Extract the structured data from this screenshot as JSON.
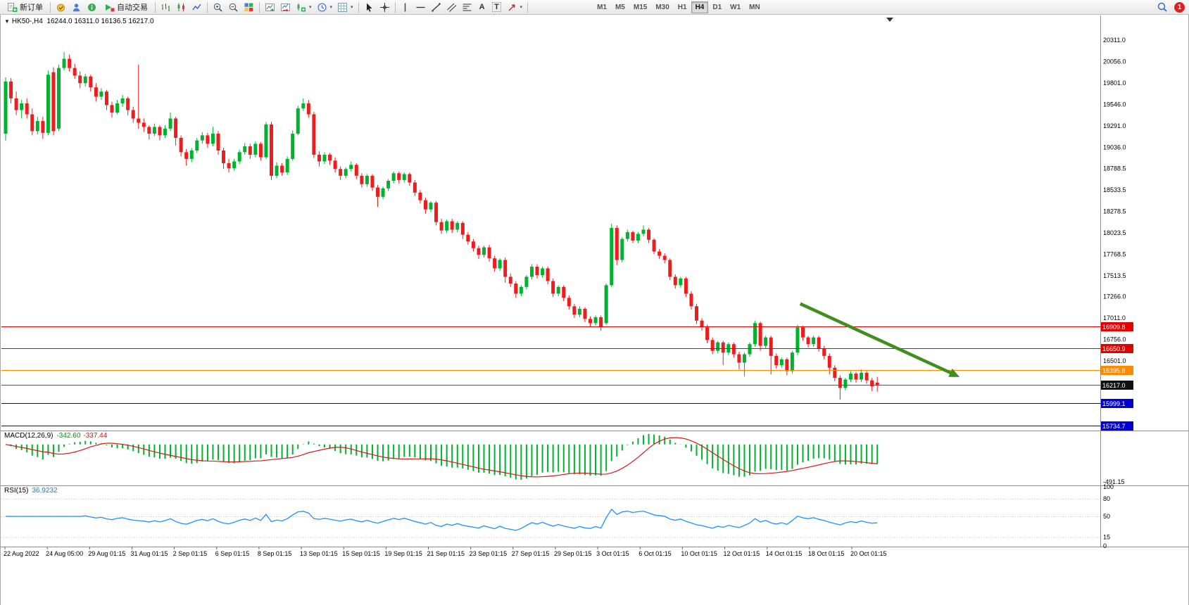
{
  "toolbar": {
    "new_order": "新订单",
    "auto_trading": "自动交易",
    "timeframes": [
      "M1",
      "M5",
      "M15",
      "M30",
      "H1",
      "H4",
      "D1",
      "W1",
      "MN"
    ],
    "active_timeframe": "H4",
    "notification_count": "1",
    "glyphs": {
      "caret": "▾",
      "text_tool": "A",
      "label_tool": "T"
    }
  },
  "chart_header": {
    "marker": "▼",
    "symbol_period": "HK50-,H4",
    "ohlc": "16244.0 16311.0 16136.5 16217.0"
  },
  "indicators": {
    "macd": {
      "name": "MACD(12,26,9)",
      "value_main": "-342.60",
      "value_signal": "-337.44",
      "axis_min": "-491.15",
      "fast": 12,
      "slow": 26,
      "signal_period": 9
    },
    "rsi": {
      "name": "RSI(15)",
      "value": "36.9232",
      "period": 15,
      "levels": [
        100,
        80,
        50,
        15,
        0
      ]
    }
  },
  "chart_data": {
    "type": "candlestick",
    "symbol": "HK50-",
    "period": "H4",
    "ylim": [
      15674,
      20604
    ],
    "y_axis_ticks": [
      "20311.0",
      "20056.0",
      "19801.0",
      "19546.0",
      "19291.0",
      "19036.0",
      "18788.5",
      "18533.5",
      "18278.5",
      "18023.5",
      "17768.5",
      "17513.5",
      "17266.0",
      "17011.0",
      "16756.0",
      "16501.0"
    ],
    "x_labels": [
      "22 Aug 2022",
      "24 Aug 05:00",
      "29 Aug 01:15",
      "31 Aug 01:15",
      "2 Sep 01:15",
      "6 Sep 01:15",
      "8 Sep 01:15",
      "13 Sep 01:15",
      "15 Sep 01:15",
      "19 Sep 01:15",
      "21 Sep 01:15",
      "23 Sep 01:15",
      "27 Sep 01:15",
      "29 Sep 01:15",
      "3 Oct 01:15",
      "6 Oct 01:15",
      "10 Oct 01:15",
      "12 Oct 01:15",
      "14 Oct 01:15",
      "18 Oct 01:15",
      "20 Oct 01:15"
    ],
    "horizontal_lines": [
      {
        "price": 16909.8,
        "label": "16909.8",
        "color": "#e30000"
      },
      {
        "price": 16650.9,
        "label": "16650.9",
        "color": "#e30000"
      },
      {
        "price": 16395.8,
        "label": "16395.8",
        "color": "#ff8a00"
      },
      {
        "price": 16217.0,
        "label": "16217.0",
        "color": "#101010",
        "line_color": "#555555",
        "role": "current-price"
      },
      {
        "price": 15999.1,
        "label": "15999.1",
        "color": "#0000d6"
      },
      {
        "price": 15734.7,
        "label": "15734.7",
        "color": "#0000d6"
      }
    ],
    "arrow": {
      "from_bar": 149.5,
      "from_price": 17180,
      "to_bar": 179.5,
      "to_price": 16310
    },
    "colors": {
      "up": "#00b22d",
      "down": "#ee1c1c",
      "macd": "#00b22d",
      "signal": "#d51a1a",
      "rsi": "#1e90ff",
      "arrow": "#3f8f1f"
    },
    "candles": [
      [
        19200,
        19870,
        19120,
        19820
      ],
      [
        19820,
        19860,
        19560,
        19620
      ],
      [
        19620,
        19700,
        19420,
        19480
      ],
      [
        19480,
        19600,
        19380,
        19560
      ],
      [
        19560,
        19620,
        19380,
        19430
      ],
      [
        19430,
        19500,
        19180,
        19230
      ],
      [
        19230,
        19400,
        19190,
        19350
      ],
      [
        19350,
        19400,
        19140,
        19210
      ],
      [
        19210,
        19950,
        19180,
        19900
      ],
      [
        19930,
        19990,
        19180,
        19230
      ],
      [
        19260,
        20020,
        19230,
        19980
      ],
      [
        19980,
        20170,
        19950,
        20090
      ],
      [
        20090,
        20140,
        19940,
        19980
      ],
      [
        19980,
        20030,
        19850,
        19890
      ],
      [
        19890,
        19940,
        19740,
        19800
      ],
      [
        19800,
        19910,
        19760,
        19880
      ],
      [
        19880,
        19900,
        19700,
        19750
      ],
      [
        19750,
        19800,
        19580,
        19640
      ],
      [
        19640,
        19740,
        19600,
        19700
      ],
      [
        19700,
        19720,
        19480,
        19540
      ],
      [
        19540,
        19580,
        19390,
        19450
      ],
      [
        19450,
        19600,
        19430,
        19560
      ],
      [
        19560,
        19660,
        19520,
        19620
      ],
      [
        19620,
        19640,
        19420,
        19480
      ],
      [
        19480,
        19520,
        19330,
        19380
      ],
      [
        19380,
        20020,
        19260,
        19330
      ],
      [
        19330,
        19380,
        19220,
        19280
      ],
      [
        19280,
        19300,
        19130,
        19200
      ],
      [
        19200,
        19320,
        19170,
        19280
      ],
      [
        19280,
        19300,
        19120,
        19180
      ],
      [
        19180,
        19300,
        19150,
        19260
      ],
      [
        19260,
        19450,
        19230,
        19380
      ],
      [
        19380,
        19400,
        19060,
        19150
      ],
      [
        19150,
        19180,
        18930,
        18980
      ],
      [
        18980,
        19020,
        18820,
        18900
      ],
      [
        18900,
        19030,
        18860,
        19000
      ],
      [
        19000,
        19150,
        18970,
        19120
      ],
      [
        19120,
        19220,
        19080,
        19180
      ],
      [
        19180,
        19210,
        19030,
        19080
      ],
      [
        19080,
        19280,
        19050,
        19200
      ],
      [
        19200,
        19230,
        18950,
        19000
      ],
      [
        19000,
        19030,
        18780,
        18850
      ],
      [
        18850,
        18900,
        18740,
        18790
      ],
      [
        18790,
        18900,
        18760,
        18870
      ],
      [
        18870,
        19010,
        18840,
        18980
      ],
      [
        18980,
        19090,
        18950,
        19050
      ],
      [
        19050,
        19080,
        18900,
        18950
      ],
      [
        18950,
        19110,
        18920,
        19080
      ],
      [
        19080,
        19100,
        18880,
        18920
      ],
      [
        18920,
        19340,
        18900,
        19310
      ],
      [
        19310,
        19340,
        18650,
        18700
      ],
      [
        18700,
        18860,
        18670,
        18820
      ],
      [
        18820,
        18850,
        18700,
        18740
      ],
      [
        18740,
        18930,
        18710,
        18900
      ],
      [
        18900,
        19240,
        18880,
        19200
      ],
      [
        19200,
        19530,
        19180,
        19500
      ],
      [
        19500,
        19620,
        19470,
        19560
      ],
      [
        19560,
        19600,
        19390,
        19430
      ],
      [
        19430,
        19460,
        18910,
        18950
      ],
      [
        18950,
        18990,
        18810,
        18870
      ],
      [
        18870,
        18980,
        18840,
        18950
      ],
      [
        18950,
        18970,
        18830,
        18880
      ],
      [
        18880,
        18920,
        18740,
        18780
      ],
      [
        18780,
        18810,
        18650,
        18700
      ],
      [
        18700,
        18800,
        18670,
        18780
      ],
      [
        18780,
        18870,
        18750,
        18830
      ],
      [
        18830,
        18850,
        18660,
        18700
      ],
      [
        18700,
        18730,
        18560,
        18600
      ],
      [
        18600,
        18720,
        18570,
        18700
      ],
      [
        18700,
        18720,
        18520,
        18560
      ],
      [
        18560,
        18590,
        18330,
        18450
      ],
      [
        18450,
        18570,
        18420,
        18550
      ],
      [
        18550,
        18660,
        18520,
        18640
      ],
      [
        18640,
        18750,
        18610,
        18730
      ],
      [
        18730,
        18750,
        18610,
        18650
      ],
      [
        18650,
        18740,
        18620,
        18720
      ],
      [
        18720,
        18740,
        18580,
        18620
      ],
      [
        18620,
        18650,
        18460,
        18500
      ],
      [
        18500,
        18530,
        18370,
        18410
      ],
      [
        18410,
        18440,
        18250,
        18300
      ],
      [
        18300,
        18400,
        18270,
        18380
      ],
      [
        18380,
        18400,
        18110,
        18150
      ],
      [
        18150,
        18190,
        18010,
        18050
      ],
      [
        18050,
        18180,
        18020,
        18160
      ],
      [
        18160,
        18190,
        18020,
        18060
      ],
      [
        18060,
        18160,
        18030,
        18140
      ],
      [
        18140,
        18160,
        17950,
        18000
      ],
      [
        18000,
        18030,
        17880,
        17920
      ],
      [
        17920,
        17950,
        17800,
        17840
      ],
      [
        17840,
        17870,
        17710,
        17760
      ],
      [
        17760,
        17870,
        17730,
        17850
      ],
      [
        17850,
        17880,
        17680,
        17720
      ],
      [
        17720,
        17750,
        17560,
        17600
      ],
      [
        17600,
        17720,
        17570,
        17700
      ],
      [
        17700,
        17730,
        17430,
        17500
      ],
      [
        17500,
        17540,
        17380,
        17420
      ],
      [
        17420,
        17450,
        17250,
        17300
      ],
      [
        17300,
        17400,
        17270,
        17380
      ],
      [
        17380,
        17520,
        17350,
        17500
      ],
      [
        17500,
        17650,
        17470,
        17620
      ],
      [
        17620,
        17650,
        17480,
        17520
      ],
      [
        17520,
        17620,
        17490,
        17600
      ],
      [
        17600,
        17620,
        17410,
        17450
      ],
      [
        17450,
        17480,
        17260,
        17300
      ],
      [
        17300,
        17400,
        17270,
        17380
      ],
      [
        17380,
        17400,
        17210,
        17250
      ],
      [
        17250,
        17280,
        17110,
        17150
      ],
      [
        17150,
        17180,
        17010,
        17050
      ],
      [
        17050,
        17150,
        17020,
        17120
      ],
      [
        17120,
        17140,
        16960,
        17000
      ],
      [
        17000,
        17030,
        16910,
        16950
      ],
      [
        16950,
        17040,
        16920,
        17020
      ],
      [
        17020,
        17040,
        16860,
        16900
      ],
      [
        16950,
        17420,
        16930,
        17400
      ],
      [
        17400,
        18130,
        17380,
        18080
      ],
      [
        18080,
        18110,
        17640,
        17700
      ],
      [
        17700,
        17970,
        17670,
        17950
      ],
      [
        17950,
        18060,
        17920,
        18030
      ],
      [
        18030,
        18050,
        17900,
        17930
      ],
      [
        17930,
        18030,
        17900,
        18010
      ],
      [
        18010,
        18110,
        17980,
        18060
      ],
      [
        18060,
        18080,
        17900,
        17940
      ],
      [
        17940,
        17960,
        17770,
        17800
      ],
      [
        17800,
        17830,
        17710,
        17750
      ],
      [
        17750,
        17780,
        17660,
        17700
      ],
      [
        17700,
        17720,
        17460,
        17500
      ],
      [
        17500,
        17530,
        17360,
        17400
      ],
      [
        17400,
        17500,
        17370,
        17480
      ],
      [
        17480,
        17500,
        17260,
        17300
      ],
      [
        17300,
        17330,
        17110,
        17150
      ],
      [
        17150,
        17180,
        16940,
        16980
      ],
      [
        16980,
        17010,
        16860,
        16900
      ],
      [
        16900,
        16930,
        16710,
        16750
      ],
      [
        16750,
        16780,
        16580,
        16620
      ],
      [
        16620,
        16740,
        16590,
        16720
      ],
      [
        16720,
        16740,
        16450,
        16600
      ],
      [
        16600,
        16720,
        16570,
        16700
      ],
      [
        16700,
        16720,
        16540,
        16580
      ],
      [
        16580,
        16610,
        16400,
        16480
      ],
      [
        16480,
        16600,
        16320,
        16580
      ],
      [
        16580,
        16720,
        16550,
        16700
      ],
      [
        16700,
        16980,
        16670,
        16950
      ],
      [
        16950,
        16970,
        16620,
        16680
      ],
      [
        16680,
        16800,
        16650,
        16780
      ],
      [
        16780,
        16800,
        16340,
        16560
      ],
      [
        16560,
        16590,
        16410,
        16450
      ],
      [
        16450,
        16540,
        16420,
        16520
      ],
      [
        16520,
        16540,
        16330,
        16380
      ],
      [
        16380,
        16620,
        16350,
        16600
      ],
      [
        16600,
        16930,
        16570,
        16900
      ],
      [
        16900,
        16920,
        16740,
        16780
      ],
      [
        16780,
        16800,
        16660,
        16700
      ],
      [
        16700,
        16800,
        16670,
        16780
      ],
      [
        16780,
        16800,
        16610,
        16650
      ],
      [
        16650,
        16680,
        16520,
        16560
      ],
      [
        16560,
        16590,
        16340,
        16420
      ],
      [
        16420,
        16450,
        16260,
        16300
      ],
      [
        16300,
        16330,
        16040,
        16180
      ],
      [
        16180,
        16300,
        16150,
        16280
      ],
      [
        16280,
        16380,
        16250,
        16350
      ],
      [
        16350,
        16370,
        16240,
        16280
      ],
      [
        16280,
        16400,
        16250,
        16360
      ],
      [
        16360,
        16380,
        16230,
        16270
      ],
      [
        16270,
        16300,
        16140,
        16200
      ],
      [
        16244,
        16311,
        16136.5,
        16217
      ]
    ]
  }
}
